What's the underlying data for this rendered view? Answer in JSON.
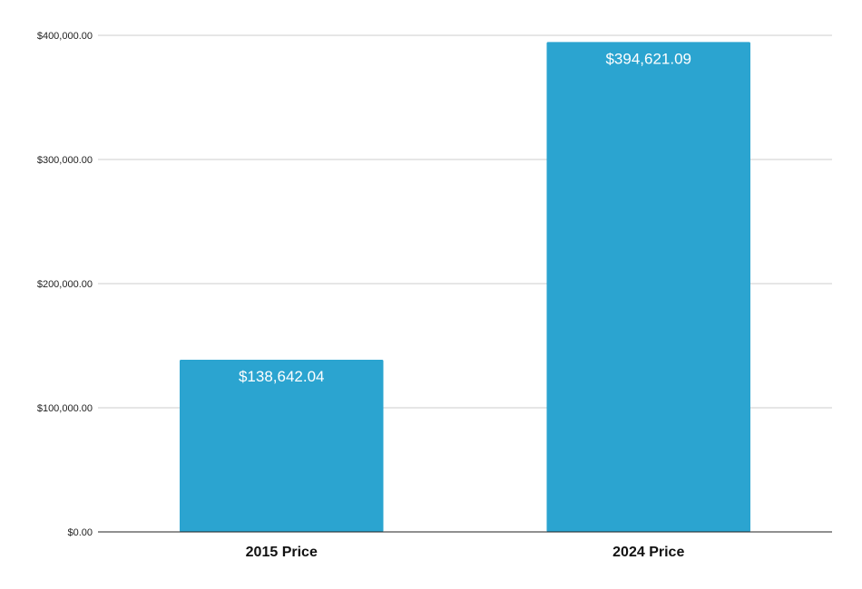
{
  "chart_data": {
    "type": "bar",
    "title": "",
    "xlabel": "",
    "ylabel": "",
    "categories": [
      "2015 Price",
      "2024 Price"
    ],
    "values": [
      138642.04,
      394621.09
    ],
    "data_labels": [
      "$138,642.04",
      "$394,621.09"
    ],
    "ylim": [
      0,
      400000
    ],
    "y_ticks": [
      0,
      100000,
      200000,
      300000,
      400000
    ],
    "y_tick_labels": [
      "$0.00",
      "$100,000.00",
      "$200,000.00",
      "$300,000.00",
      "$400,000.00"
    ],
    "grid": true,
    "legend": "none",
    "bar_color": "#2ba4d0"
  }
}
